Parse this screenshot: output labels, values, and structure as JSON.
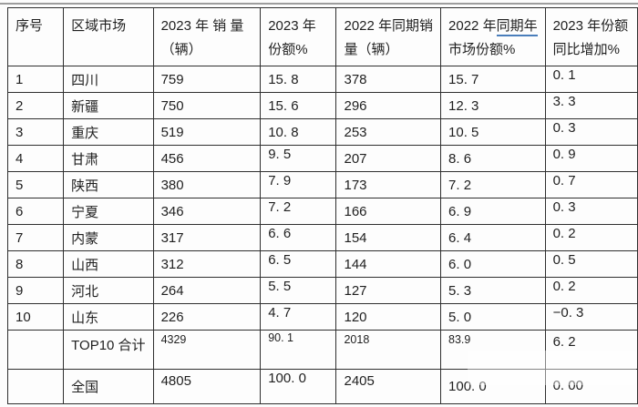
{
  "colors": {
    "header_underline_accent": "#4a7ebb",
    "top_divider": "#9d9d9d",
    "table_border": "#2f2f2f"
  },
  "table": {
    "columns": [
      {
        "key": "index",
        "header_lines": [
          [
            {
              "text": "序号"
            }
          ]
        ]
      },
      {
        "key": "region",
        "header_lines": [
          [
            {
              "text": "区域市场"
            }
          ]
        ]
      },
      {
        "key": "sales2023",
        "header_lines": [
          [
            {
              "text": "2023 年 销 量"
            }
          ],
          [
            {
              "text": "（辆）"
            }
          ]
        ]
      },
      {
        "key": "share2023",
        "header_lines": [
          [
            {
              "text": "2023  年"
            }
          ],
          [
            {
              "text": "份额%"
            }
          ]
        ]
      },
      {
        "key": "sales2022",
        "header_lines": [
          [
            {
              "text": "2022 年同期销"
            }
          ],
          [
            {
              "text": "量（辆）"
            }
          ]
        ]
      },
      {
        "key": "share2022",
        "header_lines": [
          [
            {
              "text": "2022 年"
            },
            {
              "text": "同期年",
              "underline": true
            }
          ],
          [
            {
              "text": "市场份额%"
            }
          ]
        ]
      },
      {
        "key": "shareGain",
        "header_lines": [
          [
            {
              "text": "2023 年份额"
            }
          ],
          [
            {
              "text": "同比增加%"
            }
          ]
        ]
      }
    ],
    "rows": [
      {
        "index": "1",
        "region": "四川",
        "sales2023": "759",
        "share2023": "15. 8",
        "sales2022": "378",
        "share2022": "15. 7",
        "shareGain": "0. 1"
      },
      {
        "index": "2",
        "region": "新疆",
        "sales2023": "750",
        "share2023": "15. 6",
        "sales2022": "296",
        "share2022": "12. 3",
        "shareGain": "3. 3"
      },
      {
        "index": "3",
        "region": "重庆",
        "sales2023": "519",
        "share2023": "10. 8",
        "sales2022": "253",
        "share2022": "10. 5",
        "shareGain": "0. 3"
      },
      {
        "index": "4",
        "region": "甘肃",
        "sales2023": "456",
        "share2023": "9. 5",
        "sales2022": "207",
        "share2022": "8. 6",
        "shareGain": "0. 9"
      },
      {
        "index": "5",
        "region": "陕西",
        "sales2023": "380",
        "share2023": "7. 9",
        "sales2022": "173",
        "share2022": "7. 2",
        "shareGain": "0. 7"
      },
      {
        "index": "6",
        "region": "宁夏",
        "sales2023": "346",
        "share2023": "7. 2",
        "sales2022": "166",
        "share2022": "6. 9",
        "shareGain": "0. 3"
      },
      {
        "index": "7",
        "region": "内蒙",
        "sales2023": "317",
        "share2023": "6. 6",
        "sales2022": "154",
        "share2022": "6. 4",
        "shareGain": "0. 2"
      },
      {
        "index": "8",
        "region": "山西",
        "sales2023": "312",
        "share2023": "6. 5",
        "sales2022": "144",
        "share2022": "6. 0",
        "shareGain": "0. 5"
      },
      {
        "index": "9",
        "region": "河北",
        "sales2023": "264",
        "share2023": "5. 5",
        "sales2022": "127",
        "share2022": "5. 3",
        "shareGain": "0. 2"
      },
      {
        "index": "10",
        "region": "山东",
        "sales2023": "226",
        "share2023": "4. 7",
        "sales2022": "120",
        "share2022": "5. 0",
        "shareGain": "−0. 3"
      },
      {
        "index": "",
        "region": "TOP10 合计",
        "sales2023": "4329",
        "share2023": "90. 1",
        "sales2022": "2018",
        "share2022": "83.9",
        "shareGain": "6. 2"
      },
      {
        "index": "",
        "region": "全国",
        "sales2023": "4805",
        "share2023": "100. 0",
        "sales2022": "2405",
        "share2022": "100. 0",
        "shareGain": "0. 00"
      }
    ]
  }
}
